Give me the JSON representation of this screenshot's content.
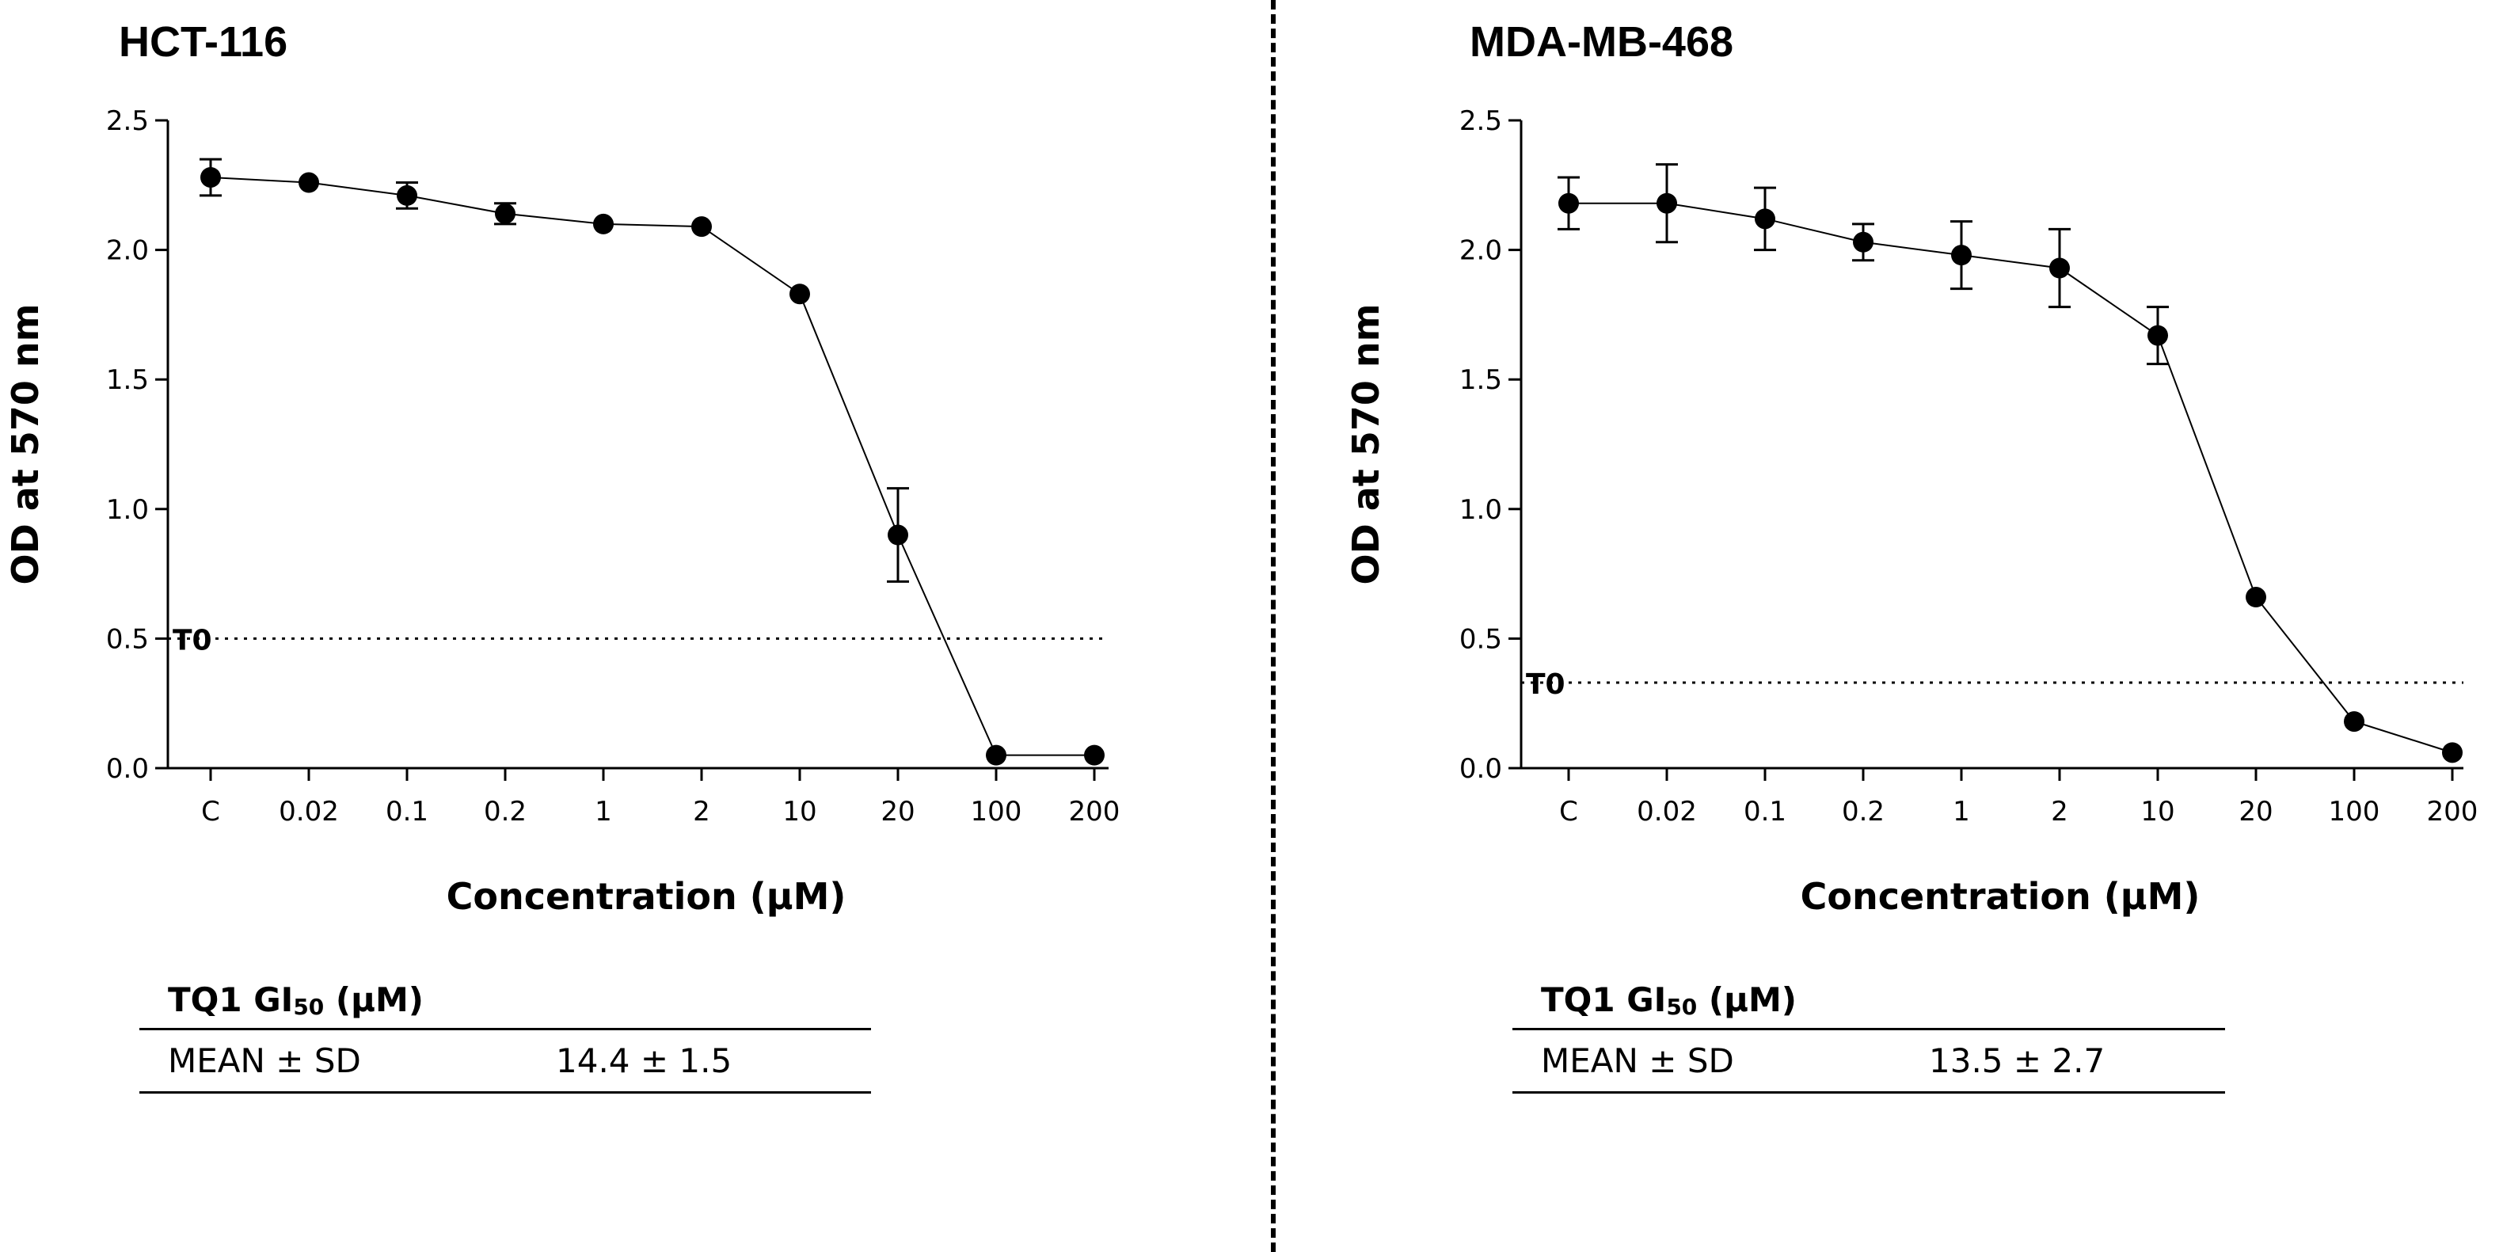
{
  "charts": [
    {
      "title": "HCT-116",
      "table": {
        "header_prefix": "TQ1 GI",
        "header_sub": "50",
        "header_suffix": " (µM)",
        "row_label": "MEAN ± SD",
        "row_value": "14.4 ± 1.5"
      }
    },
    {
      "title": "MDA-MB-468",
      "table": {
        "header_prefix": "TQ1 GI",
        "header_sub": "50",
        "header_suffix": " (µM)",
        "row_label": "MEAN ± SD",
        "row_value": "13.5 ± 2.7"
      }
    }
  ],
  "chart_data": [
    {
      "type": "line",
      "title": "HCT-116",
      "xlabel": "Concentration (µM)",
      "ylabel": "OD at 570 nm",
      "categories": [
        "C",
        "0.02",
        "0.1",
        "0.2",
        "1",
        "2",
        "10",
        "20",
        "100",
        "200"
      ],
      "series": [
        {
          "name": "HCT-116",
          "values": [
            2.28,
            2.26,
            2.21,
            2.14,
            2.1,
            2.09,
            1.83,
            0.9,
            0.05,
            0.05
          ],
          "errors": [
            0.07,
            0.02,
            0.05,
            0.04,
            0.02,
            0.02,
            0.02,
            0.18,
            0.02,
            0.02
          ]
        }
      ],
      "ylim": [
        0,
        2.5
      ],
      "yticks": [
        0.0,
        0.5,
        1.0,
        1.5,
        2.0,
        2.5
      ],
      "ytick_labels": [
        "0.0",
        "0.5",
        "1.0",
        "1.5",
        "2.0",
        "2.5"
      ],
      "reference_line": {
        "label": "T0",
        "value": 0.5
      },
      "grid": false
    },
    {
      "type": "line",
      "title": "MDA-MB-468",
      "xlabel": "Concentration (µM)",
      "ylabel": "OD at 570 nm",
      "categories": [
        "C",
        "0.02",
        "0.1",
        "0.2",
        "1",
        "2",
        "10",
        "20",
        "100",
        "200"
      ],
      "series": [
        {
          "name": "MDA-MB-468",
          "values": [
            2.18,
            2.18,
            2.12,
            2.03,
            1.98,
            1.93,
            1.67,
            0.66,
            0.18,
            0.06
          ],
          "errors": [
            0.1,
            0.15,
            0.12,
            0.07,
            0.13,
            0.15,
            0.11,
            0.02,
            0.02,
            0.02
          ]
        }
      ],
      "ylim": [
        0,
        2.5
      ],
      "yticks": [
        0.0,
        0.5,
        1.0,
        1.5,
        2.0,
        2.5
      ],
      "ytick_labels": [
        "0.0",
        "0.5",
        "1.0",
        "1.5",
        "2.0",
        "2.5"
      ],
      "reference_line": {
        "label": "T0",
        "value": 0.33
      },
      "grid": false
    }
  ]
}
